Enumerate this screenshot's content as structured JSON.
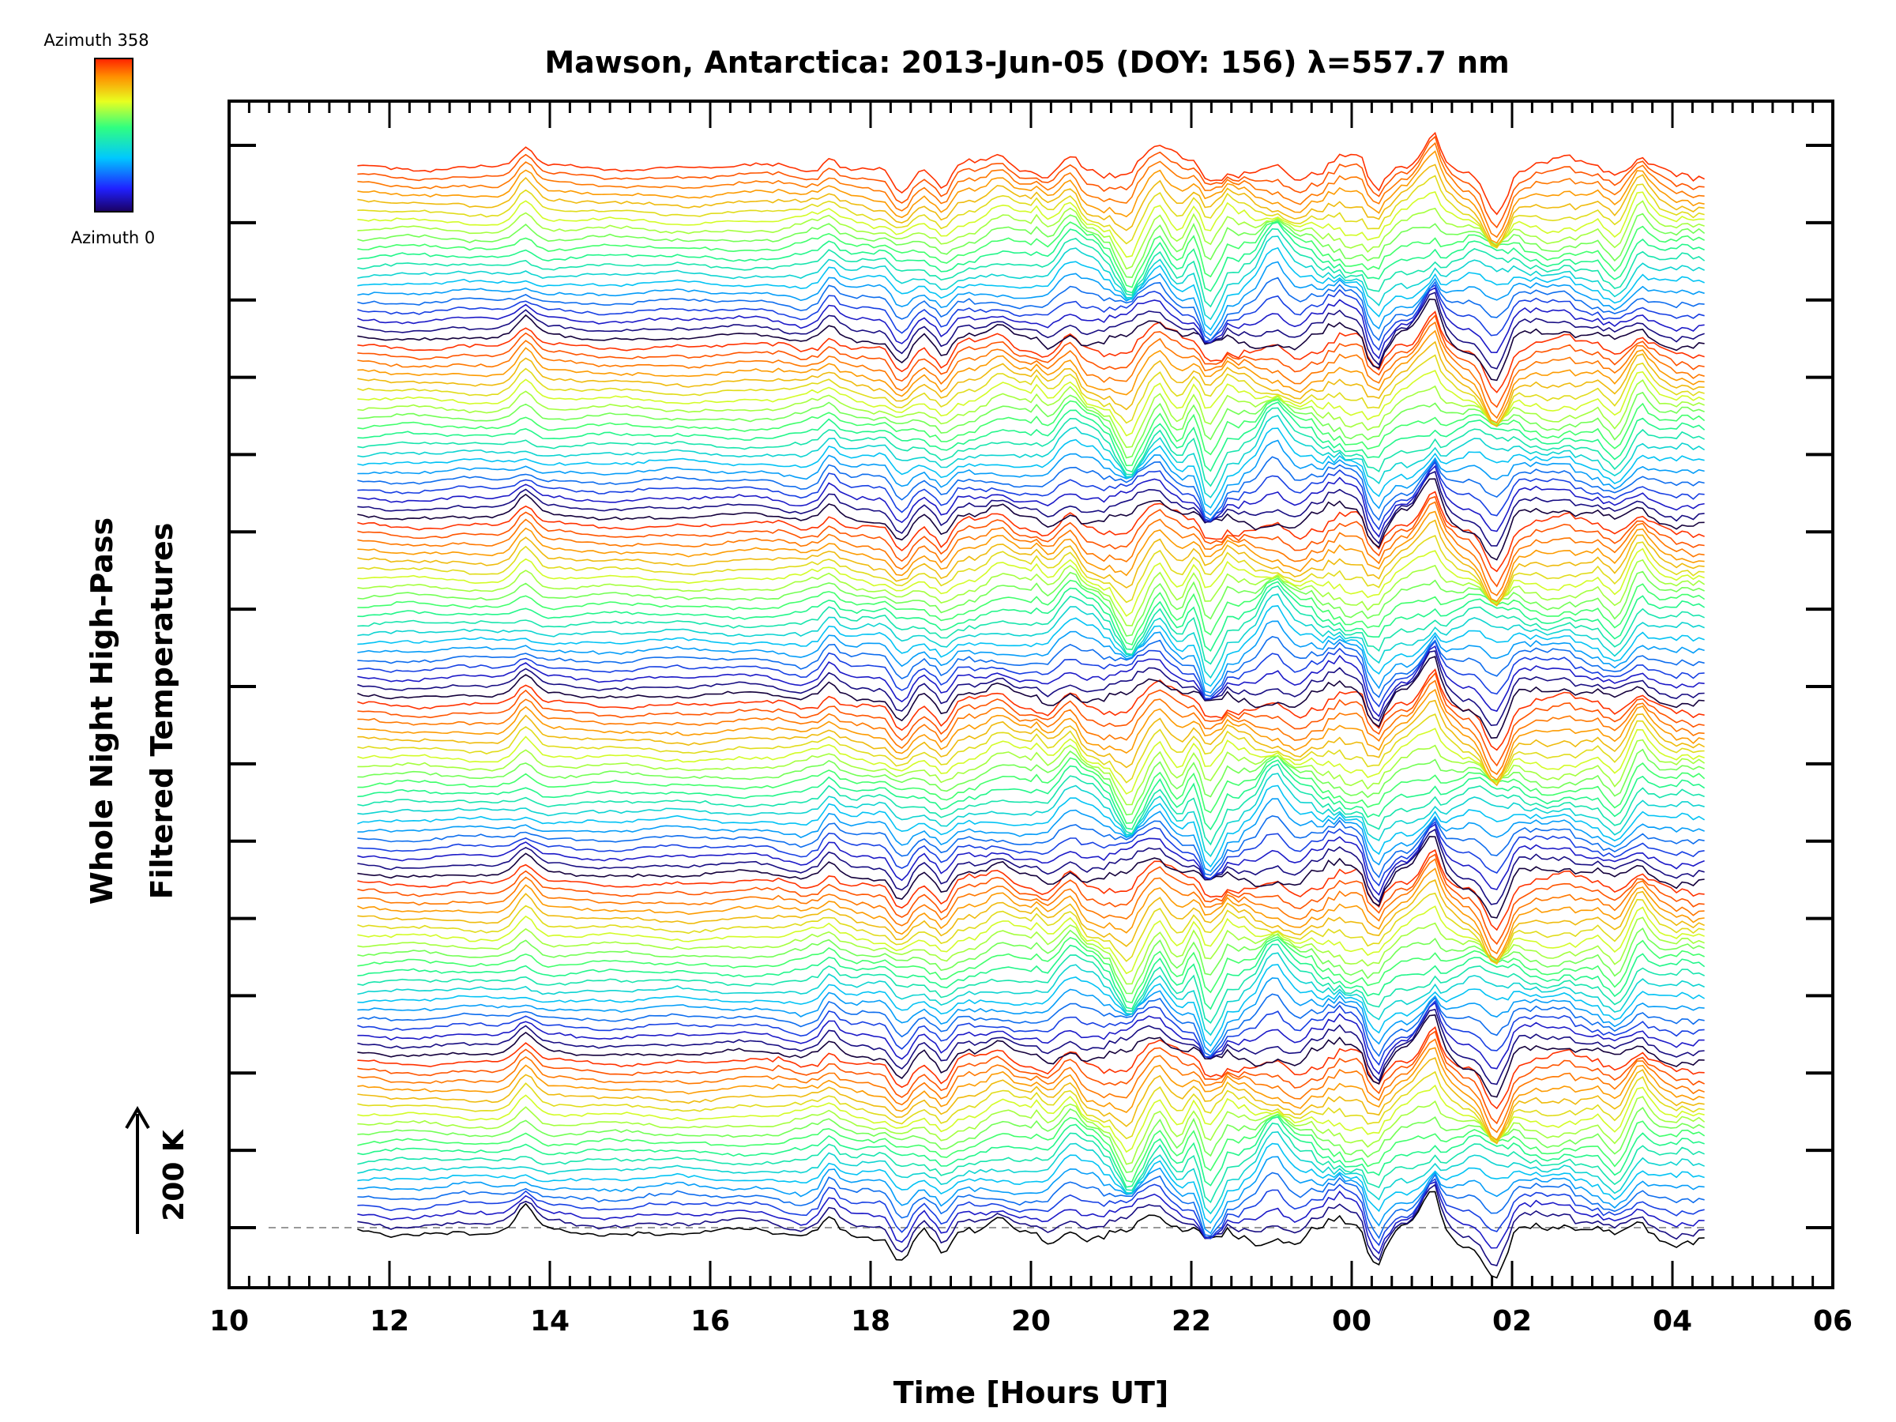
{
  "chart_data": {
    "type": "line",
    "title": "Mawson, Antarctica: 2013-Jun-05 (DOY: 156) λ=557.7 nm",
    "xlabel": "Time [Hours UT]",
    "ylabel_lines": [
      "Whole Night High-Pass",
      "Filtered Temperatures"
    ],
    "x_tick_labels": [
      "10",
      "12",
      "14",
      "16",
      "18",
      "20",
      "22",
      "00",
      "02",
      "04",
      "06"
    ],
    "x_ticks_hours_elapsed": [
      10,
      12,
      14,
      16,
      18,
      20,
      22,
      24,
      26,
      28,
      30
    ],
    "xlim_hours_ut": [
      10,
      30
    ],
    "data_range_hours_ut": [
      11.6,
      28.4
    ],
    "y_scale_bar": "200 K",
    "colorbar": {
      "top_label": "Azimuth  358",
      "bottom_label": "Azimuth  0",
      "colormap": "rainbow",
      "range": [
        0,
        358
      ]
    },
    "series_count": 120,
    "azimuth_cycles": 6,
    "grid": false,
    "legend": "colorbar top-left",
    "features_hours_ut": [
      {
        "t": 13.7,
        "amp": 0.9
      },
      {
        "t": 17.5,
        "amp": 0.7
      },
      {
        "t": 18.4,
        "amp": -0.9
      },
      {
        "t": 18.9,
        "amp": -0.9
      },
      {
        "t": 19.6,
        "amp": 0.6
      },
      {
        "t": 20.5,
        "amp": 0.8
      },
      {
        "t": 21.2,
        "amp": -1.0
      },
      {
        "t": 21.6,
        "amp": 1.0
      },
      {
        "t": 21.9,
        "amp": -1.0
      },
      {
        "t": 22.0,
        "amp": 1.2
      },
      {
        "t": 22.2,
        "amp": -1.3
      },
      {
        "t": 23.0,
        "amp": 0.8
      },
      {
        "t": 24.3,
        "amp": -1.3
      },
      {
        "t": 25.0,
        "amp": 1.2
      },
      {
        "t": 25.8,
        "amp": -1.1
      },
      {
        "t": 27.3,
        "amp": -0.9
      },
      {
        "t": 27.6,
        "amp": 0.8
      }
    ]
  }
}
